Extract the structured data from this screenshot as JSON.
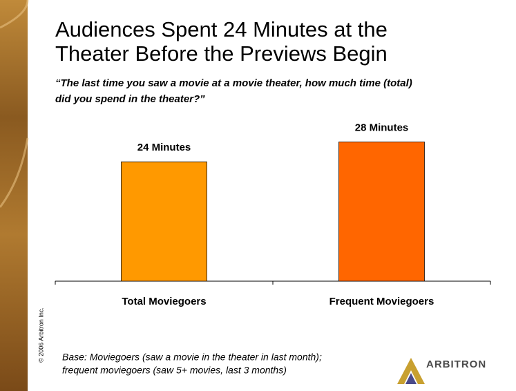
{
  "chart_data": {
    "type": "bar",
    "title": [
      "Audiences Spent 24 Minutes at the",
      "Theater Before the Previews Begin"
    ],
    "subtitle": [
      "“The last time you saw a movie at a movie theater, how much time (total)",
      "did you spend in the theater?”"
    ],
    "categories": [
      "Total Moviegoers",
      "Frequent Moviegoers"
    ],
    "values": [
      24,
      28
    ],
    "value_labels": [
      "24 Minutes",
      "28 Minutes"
    ],
    "colors": [
      "#ff9900",
      "#ff6600"
    ],
    "footnote": [
      "Base:  Moviegoers (saw a movie in the theater in last month);",
      "frequent moviegoers (saw 5+ movies, last 3 months)"
    ],
    "copyright": "© 2006 Arbitron Inc.",
    "logo": "ARBITRON"
  }
}
